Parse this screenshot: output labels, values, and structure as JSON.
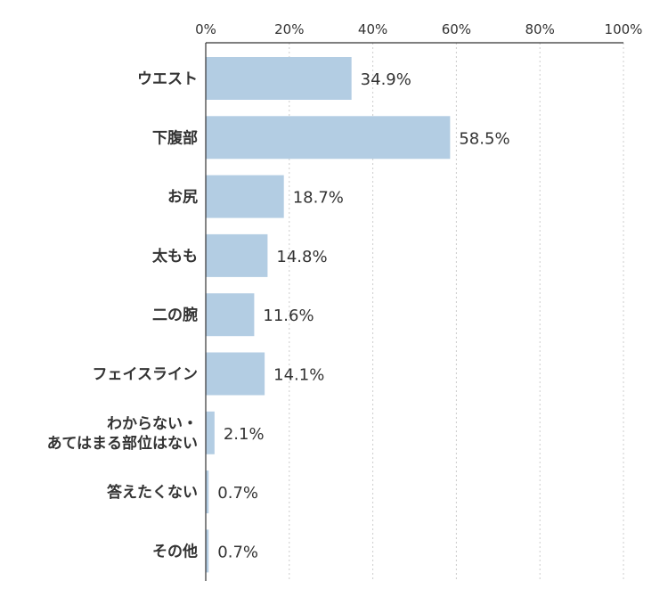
{
  "chart_data": {
    "type": "bar",
    "orientation": "horizontal",
    "categories": [
      "ウエスト",
      "下腹部",
      "お尻",
      "太もも",
      "二の腕",
      "フェイスライン",
      "わからない・\nあてはまる部位はない",
      "答えたくない",
      "その他"
    ],
    "values": [
      34.9,
      58.5,
      18.7,
      14.8,
      11.6,
      14.1,
      2.1,
      0.7,
      0.7
    ],
    "value_labels": [
      "34.9%",
      "58.5%",
      "18.7%",
      "14.8%",
      "11.6%",
      "14.1%",
      "2.1%",
      "0.7%",
      "0.7%"
    ],
    "x_ticks": [
      0,
      20,
      40,
      60,
      80,
      100
    ],
    "x_tick_labels": [
      "0%",
      "20%",
      "40%",
      "60%",
      "80%",
      "100%"
    ],
    "xlim": [
      0,
      100
    ],
    "grid": true,
    "bar_color": "#b3cde3",
    "axis_color": "#333333",
    "grid_color": "#cccccc"
  }
}
